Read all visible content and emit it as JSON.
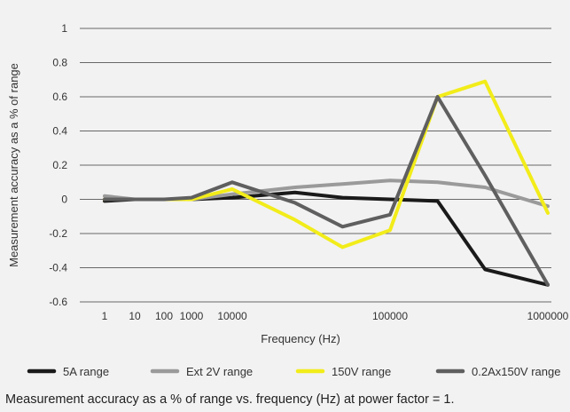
{
  "chart_data": {
    "type": "line",
    "title": "",
    "xlabel": "Frequency (Hz)",
    "ylabel": "Measurement accuracy as a % of range",
    "ylim": [
      -0.6,
      1
    ],
    "y_ticks": [
      "1",
      "0.8",
      "0.6",
      "0.4",
      "0.2",
      "0",
      "-0.2",
      "-0.4",
      "-0.6"
    ],
    "x_tick_labels": [
      "1",
      "10",
      "100",
      "1000",
      "10000",
      "100000",
      "1000000"
    ],
    "x": [
      1,
      10,
      100,
      1000,
      10000,
      25000,
      50000,
      100000,
      200000,
      400000,
      1000000
    ],
    "grid": true,
    "legend_position": "bottom",
    "series": [
      {
        "name": "5A range",
        "color": "#1a1a1a",
        "values": [
          -0.01,
          0.0,
          0.0,
          0.0,
          0.01,
          0.04,
          0.01,
          0.0,
          -0.01,
          -0.41,
          -0.5
        ]
      },
      {
        "name": "Ext 2V range",
        "color": "#9a9a9a",
        "values": [
          0.02,
          0.0,
          0.0,
          0.0,
          0.03,
          0.07,
          0.09,
          0.11,
          0.1,
          0.07,
          -0.04
        ]
      },
      {
        "name": "150V range",
        "color": "#f2ec1a",
        "values": [
          0.0,
          0.0,
          0.0,
          0.0,
          0.06,
          -0.12,
          -0.28,
          -0.18,
          0.6,
          0.69,
          -0.08
        ]
      },
      {
        "name": "0.2Ax150V range",
        "color": "#5f5f5f",
        "values": [
          0.0,
          0.0,
          0.0,
          0.01,
          0.1,
          -0.02,
          -0.16,
          -0.09,
          0.6,
          0.14,
          -0.5
        ]
      }
    ]
  },
  "caption": "Measurement accuracy as a % of range vs. frequency (Hz) at power factor = 1."
}
